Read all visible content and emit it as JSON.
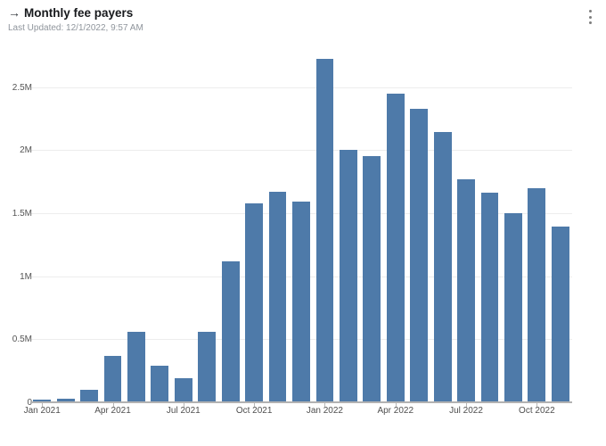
{
  "header": {
    "arrow_icon": "→",
    "title": "Monthly fee payers",
    "last_updated": "Last Updated: 12/1/2022, 9:57 AM",
    "menu_icon": "kebab-vertical-icon"
  },
  "chart_data": {
    "type": "bar",
    "title": "Monthly fee payers",
    "categories": [
      "Jan 2021",
      "Feb 2021",
      "Mar 2021",
      "Apr 2021",
      "May 2021",
      "Jun 2021",
      "Jul 2021",
      "Aug 2021",
      "Sep 2021",
      "Oct 2021",
      "Nov 2021",
      "Dec 2021",
      "Jan 2022",
      "Feb 2022",
      "Mar 2022",
      "Apr 2022",
      "May 2022",
      "Jun 2022",
      "Jul 2022",
      "Aug 2022",
      "Sep 2022",
      "Oct 2022",
      "Nov 2022"
    ],
    "values": [
      0.02,
      0.03,
      0.1,
      0.37,
      0.56,
      0.29,
      0.19,
      0.56,
      1.12,
      1.58,
      1.67,
      1.59,
      2.72,
      2.0,
      1.95,
      2.45,
      2.33,
      2.14,
      1.77,
      1.66,
      1.5,
      1.7,
      1.39
    ],
    "unit": "M",
    "xlabel": "",
    "ylabel": "",
    "ylim": [
      0,
      2.77
    ],
    "y_ticks": [
      {
        "v": 0,
        "label": "0"
      },
      {
        "v": 0.5,
        "label": "0.5M"
      },
      {
        "v": 1,
        "label": "1M"
      },
      {
        "v": 1.5,
        "label": "1.5M"
      },
      {
        "v": 2,
        "label": "2M"
      },
      {
        "v": 2.5,
        "label": "2.5M"
      }
    ],
    "x_label_interval": 3,
    "grid": true,
    "legend": false,
    "bar_color": "#4e7aa9"
  }
}
